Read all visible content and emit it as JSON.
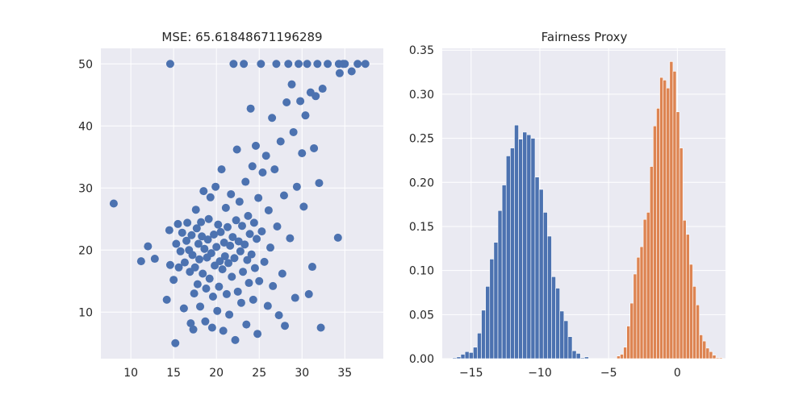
{
  "chart_data": [
    {
      "type": "scatter",
      "title": "MSE: 65.61848671196289",
      "xlabel": "",
      "ylabel": "",
      "xlim": [
        6.5,
        39.5
      ],
      "ylim": [
        2.5,
        52.5
      ],
      "xticks": [
        10,
        15,
        20,
        25,
        30,
        35
      ],
      "yticks": [
        10,
        20,
        30,
        40,
        50
      ],
      "grid": true,
      "color": "#4c72b0",
      "points": [
        [
          8.0,
          27.5
        ],
        [
          11.2,
          18.2
        ],
        [
          12.0,
          20.6
        ],
        [
          12.8,
          18.6
        ],
        [
          14.2,
          12.0
        ],
        [
          14.5,
          23.2
        ],
        [
          14.6,
          50.0
        ],
        [
          14.6,
          17.6
        ],
        [
          15.0,
          15.2
        ],
        [
          15.2,
          5.0
        ],
        [
          15.3,
          21.0
        ],
        [
          15.5,
          24.2
        ],
        [
          15.6,
          17.2
        ],
        [
          15.8,
          19.8
        ],
        [
          16.0,
          22.8
        ],
        [
          16.2,
          10.6
        ],
        [
          16.3,
          18.0
        ],
        [
          16.5,
          21.5
        ],
        [
          16.6,
          24.4
        ],
        [
          16.8,
          20.0
        ],
        [
          16.9,
          16.5
        ],
        [
          17.0,
          8.2
        ],
        [
          17.1,
          22.4
        ],
        [
          17.2,
          19.2
        ],
        [
          17.3,
          7.2
        ],
        [
          17.4,
          13.0
        ],
        [
          17.5,
          17.2
        ],
        [
          17.6,
          26.5
        ],
        [
          17.7,
          23.5
        ],
        [
          17.8,
          14.5
        ],
        [
          17.9,
          21.0
        ],
        [
          18.0,
          18.5
        ],
        [
          18.1,
          10.9
        ],
        [
          18.2,
          24.5
        ],
        [
          18.3,
          22.2
        ],
        [
          18.4,
          16.2
        ],
        [
          18.5,
          29.5
        ],
        [
          18.6,
          20.2
        ],
        [
          18.7,
          8.5
        ],
        [
          18.8,
          13.8
        ],
        [
          18.9,
          18.8
        ],
        [
          19.0,
          21.7
        ],
        [
          19.1,
          25.0
        ],
        [
          19.2,
          15.4
        ],
        [
          19.3,
          28.5
        ],
        [
          19.4,
          19.5
        ],
        [
          19.5,
          7.5
        ],
        [
          19.6,
          12.5
        ],
        [
          19.7,
          22.5
        ],
        [
          19.8,
          17.5
        ],
        [
          19.9,
          30.2
        ],
        [
          20.0,
          20.5
        ],
        [
          20.1,
          10.2
        ],
        [
          20.2,
          24.1
        ],
        [
          20.3,
          14.1
        ],
        [
          20.4,
          18.2
        ],
        [
          20.5,
          22.9
        ],
        [
          20.6,
          33.0
        ],
        [
          20.7,
          16.9
        ],
        [
          20.8,
          7.0
        ],
        [
          20.9,
          21.2
        ],
        [
          21.0,
          19.0
        ],
        [
          21.1,
          26.8
        ],
        [
          21.2,
          12.9
        ],
        [
          21.3,
          23.7
        ],
        [
          21.4,
          17.9
        ],
        [
          21.5,
          9.6
        ],
        [
          21.6,
          20.7
        ],
        [
          21.7,
          29.0
        ],
        [
          21.8,
          15.7
        ],
        [
          21.9,
          22.1
        ],
        [
          22.0,
          50.0
        ],
        [
          22.1,
          18.7
        ],
        [
          22.2,
          5.5
        ],
        [
          22.3,
          24.8
        ],
        [
          22.4,
          36.2
        ],
        [
          22.5,
          13.3
        ],
        [
          22.6,
          21.4
        ],
        [
          22.7,
          27.8
        ],
        [
          22.8,
          19.8
        ],
        [
          22.9,
          11.5
        ],
        [
          23.0,
          23.9
        ],
        [
          23.1,
          16.5
        ],
        [
          23.2,
          50.0
        ],
        [
          23.3,
          20.9
        ],
        [
          23.4,
          31.0
        ],
        [
          23.5,
          8.0
        ],
        [
          23.6,
          18.4
        ],
        [
          23.7,
          25.5
        ],
        [
          23.8,
          14.7
        ],
        [
          23.9,
          22.6
        ],
        [
          24.0,
          42.8
        ],
        [
          24.1,
          19.3
        ],
        [
          24.2,
          33.5
        ],
        [
          24.3,
          12.0
        ],
        [
          24.4,
          24.4
        ],
        [
          24.5,
          17.1
        ],
        [
          24.6,
          36.8
        ],
        [
          24.7,
          21.8
        ],
        [
          24.8,
          6.5
        ],
        [
          24.9,
          28.4
        ],
        [
          25.0,
          15.0
        ],
        [
          25.2,
          50.0
        ],
        [
          25.3,
          23.0
        ],
        [
          25.4,
          32.5
        ],
        [
          25.6,
          18.1
        ],
        [
          25.8,
          35.2
        ],
        [
          26.0,
          11.0
        ],
        [
          26.1,
          26.4
        ],
        [
          26.3,
          20.4
        ],
        [
          26.5,
          41.3
        ],
        [
          26.6,
          14.2
        ],
        [
          26.8,
          33.0
        ],
        [
          27.0,
          50.0
        ],
        [
          27.1,
          23.8
        ],
        [
          27.3,
          9.5
        ],
        [
          27.5,
          37.5
        ],
        [
          27.7,
          16.2
        ],
        [
          27.9,
          28.8
        ],
        [
          28.0,
          7.8
        ],
        [
          28.2,
          43.8
        ],
        [
          28.4,
          50.0
        ],
        [
          28.6,
          21.9
        ],
        [
          28.8,
          46.7
        ],
        [
          29.0,
          39.0
        ],
        [
          29.2,
          12.3
        ],
        [
          29.4,
          30.2
        ],
        [
          29.6,
          50.0
        ],
        [
          29.8,
          44.0
        ],
        [
          30.0,
          35.6
        ],
        [
          30.2,
          27.0
        ],
        [
          30.4,
          41.7
        ],
        [
          30.6,
          50.0
        ],
        [
          30.8,
          12.9
        ],
        [
          31.0,
          45.4
        ],
        [
          31.2,
          17.3
        ],
        [
          31.4,
          36.4
        ],
        [
          31.6,
          44.8
        ],
        [
          31.8,
          50.0
        ],
        [
          32.0,
          30.8
        ],
        [
          32.2,
          7.5
        ],
        [
          32.4,
          46.0
        ],
        [
          33.0,
          50.0
        ],
        [
          34.2,
          22.0
        ],
        [
          34.3,
          50.0
        ],
        [
          34.4,
          48.5
        ],
        [
          34.8,
          50.0
        ],
        [
          35.0,
          50.0
        ],
        [
          35.8,
          48.8
        ],
        [
          36.5,
          50.0
        ],
        [
          37.4,
          50.0
        ]
      ]
    },
    {
      "type": "bar",
      "title": "Fairness Proxy",
      "xlabel": "",
      "ylabel": "",
      "xlim": [
        -17.1,
        3.5
      ],
      "ylim": [
        0,
        0.352
      ],
      "xticks": [
        -15,
        -10,
        -5,
        0
      ],
      "xtick_labels": [
        "−15",
        "−10",
        "−5",
        "0"
      ],
      "yticks": [
        0.0,
        0.05,
        0.1,
        0.15,
        0.2,
        0.25,
        0.3,
        0.35
      ],
      "ytick_labels": [
        "0.00",
        "0.05",
        "0.10",
        "0.15",
        "0.20",
        "0.25",
        "0.30",
        "0.35"
      ],
      "grid": true,
      "series": [
        {
          "color": "#4c72b0",
          "bin_start": -16.35,
          "bin_width": 0.3,
          "values": [
            0.001,
            0.002,
            0.005,
            0.008,
            0.007,
            0.013,
            0.029,
            0.055,
            0.082,
            0.113,
            0.132,
            0.168,
            0.197,
            0.23,
            0.239,
            0.265,
            0.249,
            0.257,
            0.254,
            0.25,
            0.206,
            0.192,
            0.166,
            0.139,
            0.093,
            0.08,
            0.054,
            0.043,
            0.025,
            0.009,
            0.006,
            0.001,
            0.002
          ]
        },
        {
          "color": "#dd8452",
          "bin_start": -4.4,
          "bin_width": 0.24,
          "values": [
            0.003,
            0.005,
            0.013,
            0.037,
            0.063,
            0.096,
            0.115,
            0.127,
            0.158,
            0.166,
            0.218,
            0.264,
            0.284,
            0.319,
            0.316,
            0.307,
            0.337,
            0.326,
            0.28,
            0.239,
            0.157,
            0.141,
            0.107,
            0.082,
            0.061,
            0.027,
            0.02,
            0.012,
            0.008,
            0.004,
            0.001,
            0.001
          ]
        }
      ]
    }
  ]
}
